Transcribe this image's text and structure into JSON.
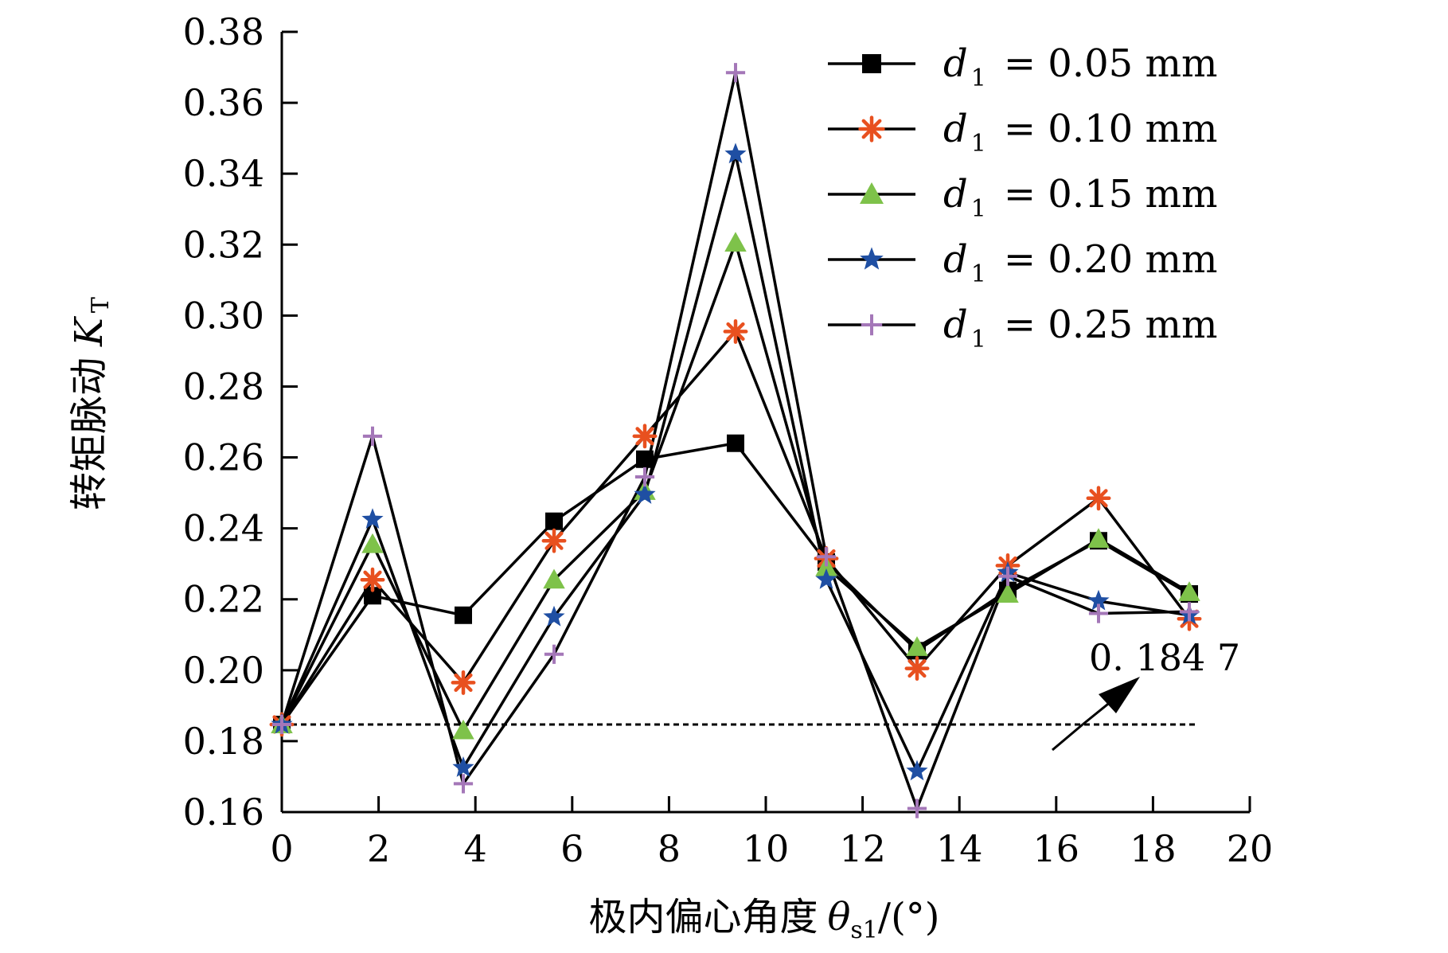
{
  "chart_data": {
    "type": "line",
    "xlabel_text": "极内偏心角度",
    "xlabel_symbol": "θ",
    "xlabel_subscript": "s1",
    "xlabel_unit": "/(°)",
    "ylabel_text": "转矩脉动",
    "ylabel_symbol": "K",
    "ylabel_subscript": "T",
    "xlim": [
      0,
      20
    ],
    "ylim": [
      0.16,
      0.38
    ],
    "xticks": [
      0,
      2,
      4,
      6,
      8,
      10,
      12,
      14,
      16,
      18,
      20
    ],
    "yticks": [
      0.16,
      0.18,
      0.2,
      0.22,
      0.24,
      0.26,
      0.28,
      0.3,
      0.32,
      0.34,
      0.36,
      0.38
    ],
    "xtick_labels": [
      "0",
      "2",
      "4",
      "6",
      "8",
      "10",
      "12",
      "14",
      "16",
      "18",
      "20"
    ],
    "ytick_labels": [
      "0.16",
      "0.18",
      "0.20",
      "0.22",
      "0.24",
      "0.26",
      "0.28",
      "0.30",
      "0.32",
      "0.34",
      "0.36",
      "0.38"
    ],
    "x": [
      0,
      1.875,
      3.75,
      5.625,
      7.5,
      9.375,
      11.25,
      13.125,
      15,
      16.875,
      18.75
    ],
    "series": [
      {
        "name": "d1 = 0.05 mm",
        "symbol": "d",
        "subscript": "1",
        "label_value": "= 0.05 mm",
        "marker": "square",
        "color": "#000000",
        "values": [
          0.1847,
          0.221,
          0.2155,
          0.242,
          0.2595,
          0.264,
          0.2305,
          0.2055,
          0.2225,
          0.2365,
          0.2215
        ]
      },
      {
        "name": "d1 = 0.10 mm",
        "symbol": "d",
        "subscript": "1",
        "label_value": "= 0.10 mm",
        "marker": "asterisk",
        "color": "#e8501f",
        "values": [
          0.1847,
          0.2255,
          0.1965,
          0.2365,
          0.266,
          0.2955,
          0.2315,
          0.2005,
          0.2295,
          0.2485,
          0.2145
        ]
      },
      {
        "name": "d1 = 0.15 mm",
        "symbol": "d",
        "subscript": "1",
        "label_value": "= 0.15 mm",
        "marker": "triangle",
        "color": "#7ec24a",
        "values": [
          0.1847,
          0.2355,
          0.183,
          0.2255,
          0.2505,
          0.3205,
          0.229,
          0.2065,
          0.2215,
          0.237,
          0.222
        ]
      },
      {
        "name": "d1 = 0.20 mm",
        "symbol": "d",
        "subscript": "1",
        "label_value": "= 0.20 mm",
        "marker": "star",
        "color": "#1f4fa3",
        "values": [
          0.1847,
          0.2425,
          0.1725,
          0.215,
          0.2495,
          0.3455,
          0.2255,
          0.1715,
          0.2275,
          0.2195,
          0.2155
        ]
      },
      {
        "name": "d1 = 0.25 mm",
        "symbol": "d",
        "subscript": "1",
        "label_value": "= 0.25 mm",
        "marker": "plus",
        "color": "#a477b8",
        "values": [
          0.1847,
          0.266,
          0.168,
          0.2045,
          0.2545,
          0.3685,
          0.232,
          0.161,
          0.2265,
          0.216,
          0.2165
        ]
      }
    ],
    "reference_line": {
      "y": 0.1847,
      "x_range": [
        0,
        18.75
      ],
      "style": "dashed",
      "label": "0. 184 7"
    },
    "legend": "top-right",
    "grid": false
  }
}
